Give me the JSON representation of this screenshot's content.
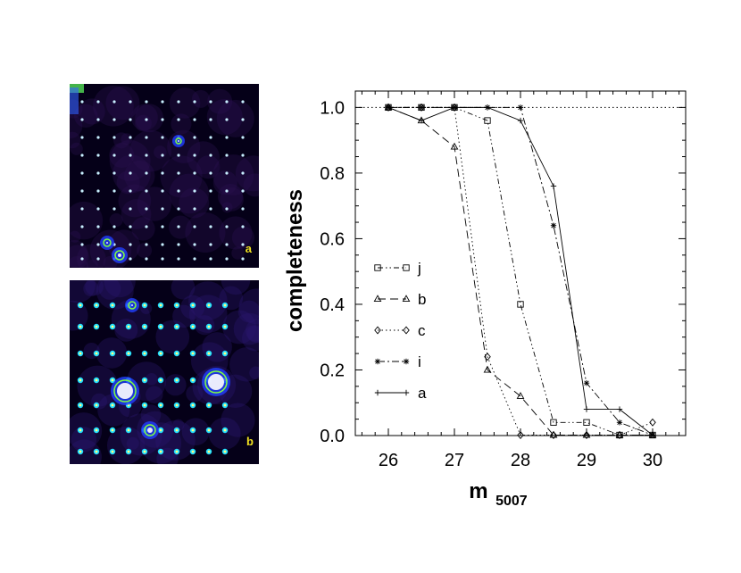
{
  "panels": [
    {
      "label": "a"
    },
    {
      "label": "b"
    }
  ],
  "chart_data": {
    "type": "line",
    "xlabel": "m",
    "xlabel_sub": "5007",
    "ylabel": "completeness",
    "xlim": [
      25.5,
      30.5
    ],
    "ylim": [
      0,
      1.05
    ],
    "xticks": [
      "26",
      "27",
      "28",
      "29",
      "30"
    ],
    "xtick_values": [
      26,
      27,
      28,
      29,
      30
    ],
    "yticks": [
      "0.0",
      "0.2",
      "0.4",
      "0.6",
      "0.8",
      "1.0"
    ],
    "ytick_values": [
      0,
      0.2,
      0.4,
      0.6,
      0.8,
      1.0
    ],
    "reference_line": 1.0,
    "legend_position": "left",
    "series": [
      {
        "name": "j",
        "marker": "square",
        "dash": "dash-dot-dot",
        "x": [
          26,
          26.5,
          27,
          27.5,
          28,
          28.5,
          29,
          29.5,
          30
        ],
        "y": [
          1.0,
          1.0,
          1.0,
          0.96,
          0.4,
          0.04,
          0.04,
          0.0,
          0.0
        ]
      },
      {
        "name": "b",
        "marker": "triangle",
        "dash": "dashed",
        "x": [
          26,
          26.5,
          27,
          27.5,
          28,
          28.5,
          29,
          29.5,
          30
        ],
        "y": [
          1.0,
          0.96,
          0.88,
          0.2,
          0.12,
          0.0,
          0.0,
          0.0,
          0.0
        ]
      },
      {
        "name": "c",
        "marker": "diamond",
        "dash": "dotted",
        "x": [
          26,
          26.5,
          27,
          27.5,
          28,
          28.5,
          29,
          29.5,
          30
        ],
        "y": [
          1.0,
          1.0,
          1.0,
          0.24,
          0.0,
          0.0,
          0.0,
          0.0,
          0.04
        ]
      },
      {
        "name": "i",
        "marker": "asterisk",
        "dash": "dash-dot",
        "x": [
          26,
          26.5,
          27,
          27.5,
          28,
          28.5,
          29,
          29.5,
          30
        ],
        "y": [
          1.0,
          1.0,
          1.0,
          1.0,
          1.0,
          0.64,
          0.16,
          0.04,
          0.0
        ]
      },
      {
        "name": "a",
        "marker": "plus",
        "dash": "solid",
        "x": [
          26,
          26.5,
          27,
          27.5,
          28,
          28.5,
          29,
          29.5,
          30
        ],
        "y": [
          1.0,
          0.96,
          1.0,
          1.0,
          0.96,
          0.76,
          0.08,
          0.08,
          0.0
        ]
      }
    ]
  }
}
